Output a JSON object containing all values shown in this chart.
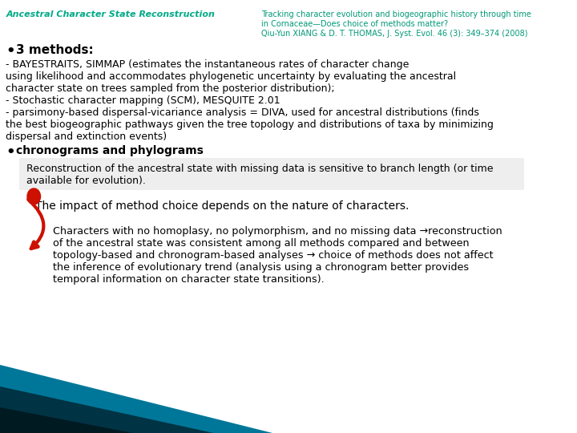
{
  "bg_color": "#ffffff",
  "title_left": "Ancestral Character State Reconstruction",
  "title_left_color": "#00aa88",
  "title_right_line1": "Tracking character evolution and biogeographic history through time",
  "title_right_line2": "in Cornaceae—Does choice of methods matter?",
  "title_right_line3": "Qiu-Yun XIANG & D. T. THOMAS, J. Syst. Evol. 46 (3): 349–374 (2008)",
  "title_right_color": "#009977",
  "bullet1_label": "3 methods:",
  "line1": "- BAYESTRAITS, SIMMAP (estimates the instantaneous rates of character change",
  "line2": "using likelihood and accommodates phylogenetic uncertainty by evaluating the ancestral",
  "line3": "character state on trees sampled from the posterior distribution);",
  "line4": "- Stochastic character mapping (SCM), MESQUITE 2.01",
  "line5": "- parsimony-based dispersal-vicariance analysis = DIVA, used for ancestral distributions (finds",
  "line6": "the best biogeographic pathways given the tree topology and distributions of taxa by minimizing",
  "line7": "dispersal and extinction events)",
  "bullet2_label": "chronograms and phylograms",
  "box1_line1": "Reconstruction of the ancestral state with missing data is sensitive to branch length (or time",
  "box1_line2": "available for evolution).",
  "impact_line": "The impact of method choice depends on the nature of characters.",
  "char_line1": "Characters with no homoplasy, no polymorphism, and no missing data →reconstruction",
  "char_line2": "of the ancestral state was consistent among all methods compared and between",
  "char_line3": "topology-based and chronogram-based analyses → choice of methods does not affect",
  "char_line4": "the inference of evolutionary trend (analysis using a chronogram better provides",
  "char_line5": "temporal information on character state transitions).",
  "bottom_color1": "#007799",
  "bottom_color2": "#003344",
  "bottom_color3": "#001a22",
  "arrow_color": "#cc1100"
}
